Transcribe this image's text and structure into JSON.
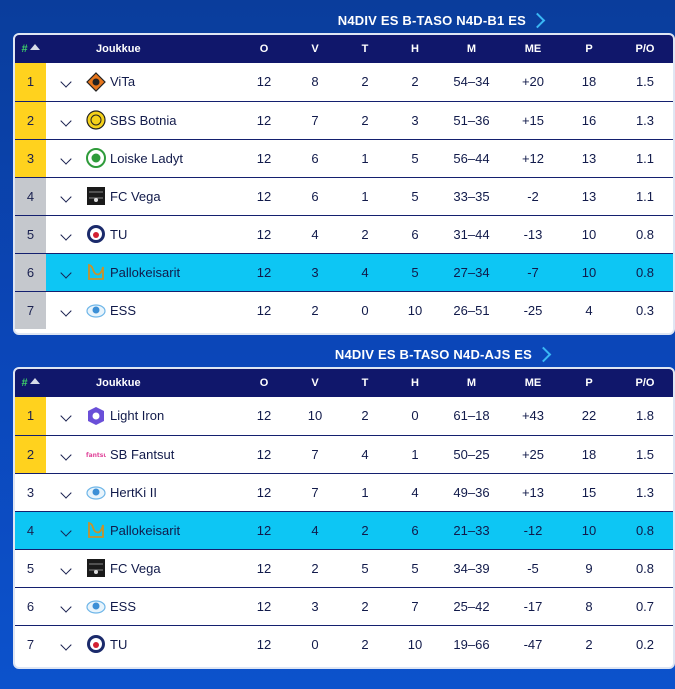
{
  "colors": {
    "background": "#0b46b8",
    "header_bg": "#10176b",
    "gold": "#ffd21e",
    "grey": "#c5c8cd",
    "highlight": "#0dc6f4",
    "title_chevron": "#3ab8f5"
  },
  "columns": {
    "rank": "#",
    "team": "Joukkue",
    "played": "O",
    "won": "V",
    "draw": "T",
    "lost": "H",
    "goals": "M",
    "goal_diff": "ME",
    "points": "P",
    "ppg": "P/O"
  },
  "tables": [
    {
      "title": "N4DIV ES B-TASO N4D-B1 ES",
      "rows": [
        {
          "rank": "1",
          "team": "ViTa",
          "logo": "vita-logo",
          "o": "12",
          "v": "8",
          "t": "2",
          "h": "2",
          "m": "54–34",
          "me": "+20",
          "p": "18",
          "po": "1.5"
        },
        {
          "rank": "2",
          "team": "SBS Botnia",
          "logo": "botnia-logo",
          "o": "12",
          "v": "7",
          "t": "2",
          "h": "3",
          "m": "51–36",
          "me": "+15",
          "p": "16",
          "po": "1.3"
        },
        {
          "rank": "3",
          "team": "Loiske Ladyt",
          "logo": "loiske-logo",
          "o": "12",
          "v": "6",
          "t": "1",
          "h": "5",
          "m": "56–44",
          "me": "+12",
          "p": "13",
          "po": "1.1"
        },
        {
          "rank": "4",
          "team": "FC Vega",
          "logo": "fcvega-logo",
          "o": "12",
          "v": "6",
          "t": "1",
          "h": "5",
          "m": "33–35",
          "me": "-2",
          "p": "13",
          "po": "1.1"
        },
        {
          "rank": "5",
          "team": "TU",
          "logo": "tu-logo",
          "o": "12",
          "v": "4",
          "t": "2",
          "h": "6",
          "m": "31–44",
          "me": "-13",
          "p": "10",
          "po": "0.8"
        },
        {
          "rank": "6",
          "team": "Pallokeisarit",
          "logo": "pallokeisarit-logo",
          "o": "12",
          "v": "3",
          "t": "4",
          "h": "5",
          "m": "27–34",
          "me": "-7",
          "p": "10",
          "po": "0.8"
        },
        {
          "rank": "7",
          "team": "ESS",
          "logo": "ess-logo",
          "o": "12",
          "v": "2",
          "t": "0",
          "h": "10",
          "m": "26–51",
          "me": "-25",
          "p": "4",
          "po": "0.3"
        }
      ]
    },
    {
      "title": "N4DIV ES B-TASO N4D-AJS ES",
      "rows": [
        {
          "rank": "1",
          "team": "Light Iron",
          "logo": "lightiron-logo",
          "o": "12",
          "v": "10",
          "t": "2",
          "h": "0",
          "m": "61–18",
          "me": "+43",
          "p": "22",
          "po": "1.8"
        },
        {
          "rank": "2",
          "team": "SB Fantsut",
          "logo": "fantsut-logo",
          "o": "12",
          "v": "7",
          "t": "4",
          "h": "1",
          "m": "50–25",
          "me": "+25",
          "p": "18",
          "po": "1.5"
        },
        {
          "rank": "3",
          "team": "HertKi II",
          "logo": "hertki-logo",
          "o": "12",
          "v": "7",
          "t": "1",
          "h": "4",
          "m": "49–36",
          "me": "+13",
          "p": "15",
          "po": "1.3"
        },
        {
          "rank": "4",
          "team": "Pallokeisarit",
          "logo": "pallokeisarit-logo",
          "o": "12",
          "v": "4",
          "t": "2",
          "h": "6",
          "m": "21–33",
          "me": "-12",
          "p": "10",
          "po": "0.8"
        },
        {
          "rank": "5",
          "team": "FC Vega",
          "logo": "fcvega-logo",
          "o": "12",
          "v": "2",
          "t": "5",
          "h": "5",
          "m": "34–39",
          "me": "-5",
          "p": "9",
          "po": "0.8"
        },
        {
          "rank": "6",
          "team": "ESS",
          "logo": "ess-logo",
          "o": "12",
          "v": "3",
          "t": "2",
          "h": "7",
          "m": "25–42",
          "me": "-17",
          "p": "8",
          "po": "0.7"
        },
        {
          "rank": "7",
          "team": "TU",
          "logo": "tu-logo",
          "o": "12",
          "v": "0",
          "t": "2",
          "h": "10",
          "m": "19–66",
          "me": "-47",
          "p": "2",
          "po": "0.2"
        }
      ]
    }
  ]
}
